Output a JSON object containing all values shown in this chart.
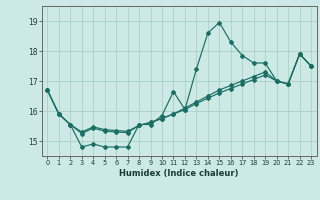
{
  "xlabel": "Humidex (Indice chaleur)",
  "bg_color": "#cce9e5",
  "grid_color": "#aacfca",
  "line_color": "#1a6e64",
  "xlim": [
    -0.5,
    23.5
  ],
  "ylim": [
    14.5,
    19.5
  ],
  "xticks": [
    0,
    1,
    2,
    3,
    4,
    5,
    6,
    7,
    8,
    9,
    10,
    11,
    12,
    13,
    14,
    15,
    16,
    17,
    18,
    19,
    20,
    21,
    22,
    23
  ],
  "yticks": [
    15,
    16,
    17,
    18,
    19
  ],
  "series1_x": [
    0,
    1,
    2,
    3,
    4,
    5,
    6,
    7,
    8,
    9,
    10,
    11,
    12,
    13,
    14,
    15,
    16,
    17,
    18,
    19,
    20,
    21,
    22,
    23
  ],
  "series1_y": [
    16.7,
    15.9,
    15.55,
    14.8,
    14.9,
    14.8,
    14.8,
    14.8,
    15.55,
    15.55,
    15.85,
    16.65,
    16.05,
    17.4,
    18.6,
    18.95,
    18.3,
    17.85,
    17.6,
    17.6,
    17.0,
    16.9,
    17.9,
    17.5
  ],
  "series2_x": [
    0,
    1,
    2,
    3,
    4,
    5,
    6,
    7,
    8,
    9,
    10,
    11,
    12,
    13,
    14,
    15,
    16,
    17,
    18,
    19,
    20,
    21,
    22,
    23
  ],
  "series2_y": [
    16.7,
    15.9,
    15.55,
    15.3,
    15.47,
    15.38,
    15.35,
    15.32,
    15.52,
    15.62,
    15.75,
    15.9,
    16.1,
    16.3,
    16.5,
    16.7,
    16.85,
    17.0,
    17.15,
    17.3,
    17.0,
    16.9,
    17.9,
    17.5
  ],
  "series3_x": [
    0,
    1,
    2,
    3,
    4,
    5,
    6,
    7,
    8,
    9,
    10,
    11,
    12,
    13,
    14,
    15,
    16,
    17,
    18,
    19,
    20,
    21,
    22,
    23
  ],
  "series3_y": [
    16.7,
    15.9,
    15.55,
    15.25,
    15.43,
    15.33,
    15.3,
    15.28,
    15.52,
    15.62,
    15.75,
    15.9,
    16.05,
    16.25,
    16.43,
    16.6,
    16.75,
    16.9,
    17.05,
    17.2,
    17.0,
    16.9,
    17.9,
    17.5
  ]
}
